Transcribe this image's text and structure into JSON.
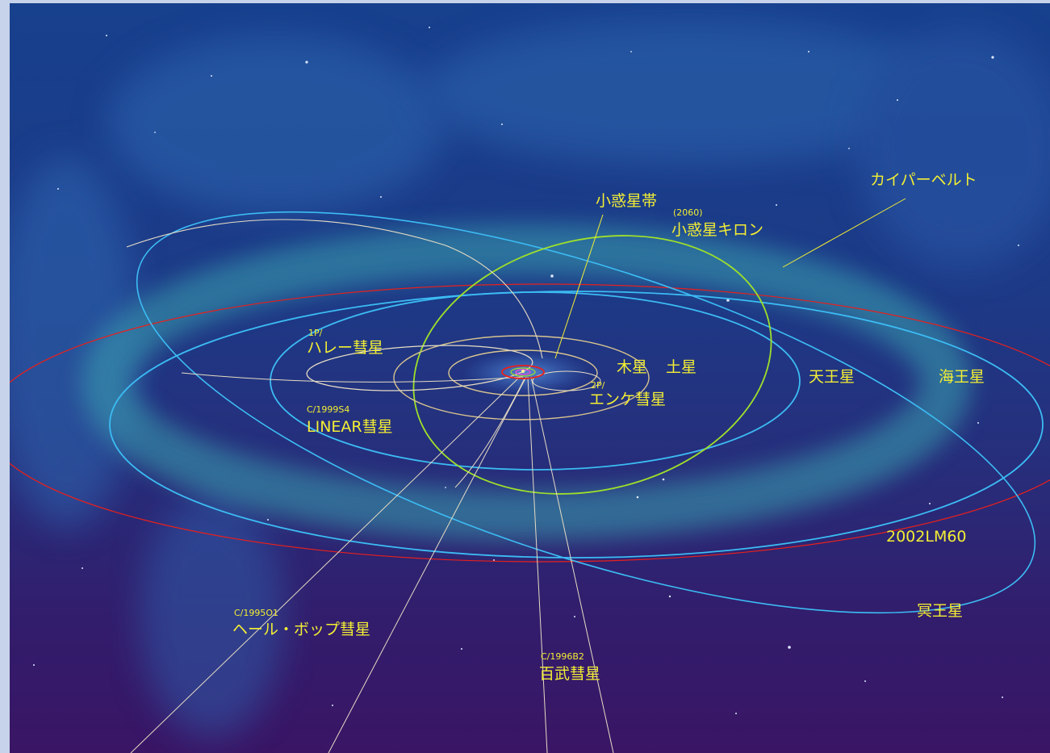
{
  "labels": {
    "kuiper": "カイパーベルト",
    "asteroid_belt": "小惑星帯",
    "chiron_number": "(2060)",
    "chiron": "小惑星キロン",
    "halley_prefix": "1P/",
    "halley": "ハレー彗星",
    "encke_prefix": "2P/",
    "encke": "エンケ彗星",
    "linear_prefix": "C/1999S4",
    "linear": "LINEAR彗星",
    "jupiter": "木星",
    "saturn": "土星",
    "uranus": "天王星",
    "neptune": "海王星",
    "lm60": "2002LM60",
    "pluto": "冥王星",
    "halebopp_prefix": "C/1995O1",
    "halebopp": "ヘール・ボップ彗星",
    "hyakutake_prefix": "C/1996B2",
    "hyakutake": "百武彗星"
  },
  "colors": {
    "label": "#f3ee34",
    "orbit_uranus_neptune": "#3cbcf4",
    "orbit_2002lm60": "#e8201c",
    "orbit_chiron": "#9fe02a",
    "orbit_comet": "#e6dcc4",
    "orbit_jupiter_saturn": "#d8c490",
    "kuiper_belt": "#3aa3b0"
  }
}
